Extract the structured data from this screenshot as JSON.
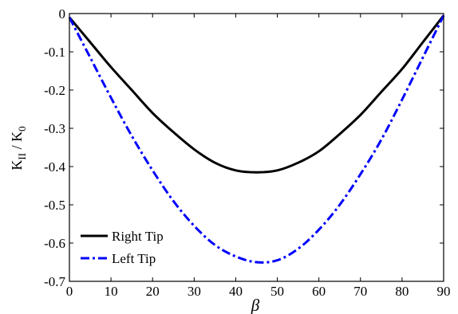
{
  "chart_data": {
    "type": "line",
    "title": "",
    "xlabel": "β",
    "ylabel": {
      "main": "K",
      "main_sub": "II",
      "separator": " / ",
      "denom": "K",
      "denom_sub": "0"
    },
    "xlim": [
      0,
      90
    ],
    "ylim": [
      -0.7,
      0
    ],
    "xticks": [
      0,
      10,
      20,
      30,
      40,
      50,
      60,
      70,
      80,
      90
    ],
    "yticks": [
      0,
      -0.1,
      -0.2,
      -0.3,
      -0.4,
      -0.5,
      -0.6,
      -0.7
    ],
    "xtick_labels": [
      "0",
      "10",
      "20",
      "30",
      "40",
      "50",
      "60",
      "70",
      "80",
      "90"
    ],
    "ytick_labels": [
      "0",
      "-0.1",
      "-0.2",
      "-0.3",
      "-0.4",
      "-0.5",
      "-0.6",
      "-0.7"
    ],
    "grid": false,
    "legend_position": "bottom-left",
    "x": [
      0,
      5,
      10,
      15,
      20,
      25,
      30,
      35,
      40,
      45,
      50,
      55,
      60,
      65,
      70,
      75,
      80,
      85,
      90
    ],
    "series": [
      {
        "name": "Right Tip",
        "color": "#000000",
        "style": "solid",
        "values": [
          -0.01,
          -0.075,
          -0.14,
          -0.2,
          -0.26,
          -0.31,
          -0.355,
          -0.39,
          -0.41,
          -0.415,
          -0.41,
          -0.39,
          -0.36,
          -0.315,
          -0.265,
          -0.205,
          -0.145,
          -0.075,
          -0.005
        ]
      },
      {
        "name": "Left Tip",
        "color": "#0000ff",
        "style": "dashdot",
        "values": [
          -0.01,
          -0.115,
          -0.22,
          -0.32,
          -0.41,
          -0.49,
          -0.555,
          -0.605,
          -0.635,
          -0.65,
          -0.645,
          -0.615,
          -0.565,
          -0.5,
          -0.42,
          -0.33,
          -0.225,
          -0.115,
          -0.005
        ]
      }
    ]
  }
}
